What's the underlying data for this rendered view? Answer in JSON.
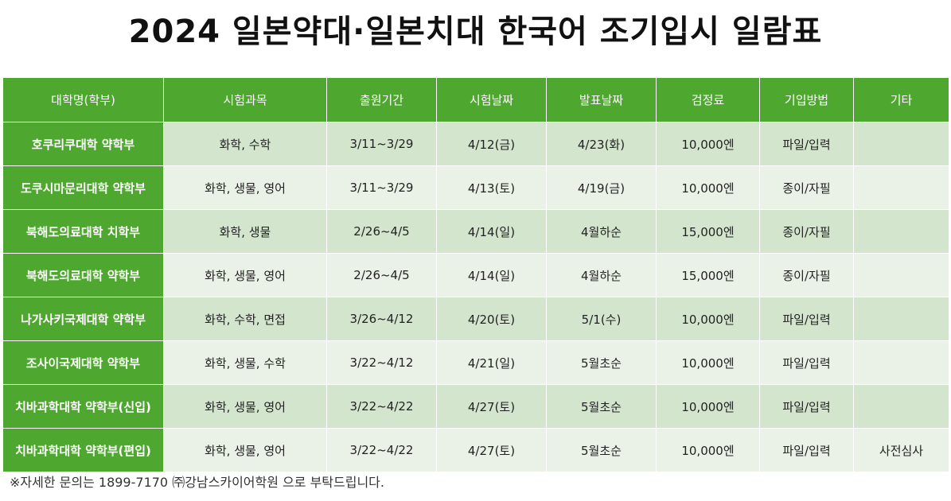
{
  "title": "2024 일본약대·일본치대 한국어 조기입시 일람표",
  "table": {
    "headers": [
      "대학명(학부)",
      "시험과목",
      "출원기간",
      "시험날짜",
      "발표날짜",
      "검정료",
      "기입방법",
      "기타"
    ],
    "rows": [
      {
        "school": "호쿠리쿠대학 약학부",
        "subjects": "화학, 수학",
        "period": "3/11~3/29",
        "exam_date": "4/12(금)",
        "result_date": "4/23(화)",
        "fee": "10,000엔",
        "method": "파일/입력",
        "note": ""
      },
      {
        "school": "도쿠시마문리대학 약학부",
        "subjects": "화학, 생물, 영어",
        "period": "3/11~3/29",
        "exam_date": "4/13(토)",
        "result_date": "4/19(금)",
        "fee": "10,000엔",
        "method": "종이/자필",
        "note": ""
      },
      {
        "school": "북해도의료대학 치학부",
        "subjects": "화학, 생물",
        "period": "2/26~4/5",
        "exam_date": "4/14(일)",
        "result_date": "4월하순",
        "fee": "15,000엔",
        "method": "종이/자필",
        "note": ""
      },
      {
        "school": "북해도의료대학 약학부",
        "subjects": "화학, 생물, 영어",
        "period": "2/26~4/5",
        "exam_date": "4/14(일)",
        "result_date": "4월하순",
        "fee": "15,000엔",
        "method": "종이/자필",
        "note": ""
      },
      {
        "school": "나가사키국제대학 약학부",
        "subjects": "화학, 수학, 면접",
        "period": "3/26~4/12",
        "exam_date": "4/20(토)",
        "result_date": "5/1(수)",
        "fee": "10,000엔",
        "method": "파일/입력",
        "note": ""
      },
      {
        "school": "조사이국제대학 약학부",
        "subjects": "화학, 생물, 수학",
        "period": "3/22~4/12",
        "exam_date": "4/21(일)",
        "result_date": "5월초순",
        "fee": "10,000엔",
        "method": "파일/입력",
        "note": ""
      },
      {
        "school": "치바과학대학 약학부(신입)",
        "subjects": "화학, 생물, 영어",
        "period": "3/22~4/22",
        "exam_date": "4/27(토)",
        "result_date": "5월초순",
        "fee": "10,000엔",
        "method": "파일/입력",
        "note": ""
      },
      {
        "school": "치바과학대학 약학부(편입)",
        "subjects": "화학, 생물, 영어",
        "period": "3/22~4/22",
        "exam_date": "4/27(토)",
        "result_date": "5월초순",
        "fee": "10,000엔",
        "method": "파일/입력",
        "note": "사전심사"
      }
    ]
  },
  "footnote": "※자세한 문의는 1899-7170 ㈜강남스카이어학원 으로 부탁드립니다.",
  "colors": {
    "header_green": "#4ea72e",
    "row_odd": "#d4e5ce",
    "row_even": "#eaf2e7"
  }
}
